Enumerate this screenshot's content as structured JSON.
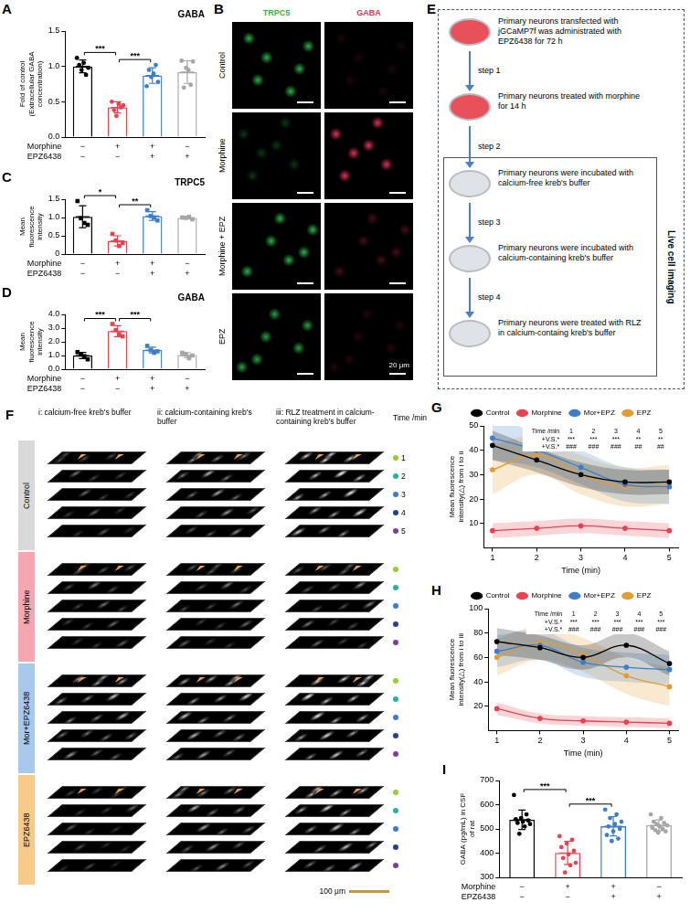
{
  "chart_data": [
    {
      "panel": "A",
      "type": "bar",
      "title": "GABA",
      "y_label": "Fold of control (Extracellular GABA concentration)",
      "categories": [
        null,
        null,
        null,
        null
      ],
      "treatments": [
        {
          "name": "Morphine",
          "signs": [
            "−",
            "+",
            "+",
            "−"
          ]
        },
        {
          "name": "EPZ6438",
          "signs": [
            "−",
            "−",
            "+",
            "+"
          ]
        }
      ],
      "values": [
        1.0,
        0.42,
        0.87,
        0.92
      ],
      "errors": [
        0.09,
        0.08,
        0.11,
        0.16
      ],
      "points": [
        [
          1.12,
          1.02,
          0.95,
          1.05,
          0.88,
          0.98
        ],
        [
          0.5,
          0.38,
          0.3,
          0.47,
          0.42,
          0.45
        ],
        [
          0.72,
          0.95,
          0.85,
          0.9,
          1.02,
          0.78
        ],
        [
          1.08,
          0.7,
          0.98,
          0.95,
          0.74,
          1.07
        ]
      ],
      "colors": [
        "#000000",
        "#e8424f",
        "#3d7ec9",
        "#a6a6a6"
      ],
      "marker": "circle",
      "ylim": [
        0,
        1.5
      ],
      "yticks": [
        {
          "value": 0,
          "label": "0.0"
        },
        0.5,
        {
          "value": 1,
          "label": "1.0"
        },
        1.5
      ],
      "significance": [
        {
          "from": 0,
          "to": 1,
          "label": "***"
        },
        {
          "from": 1,
          "to": 2,
          "label": "***"
        }
      ]
    },
    {
      "panel": "C",
      "type": "bar",
      "title": "TRPC5",
      "y_label": "Mean fluorescence intensity",
      "categories": [
        null,
        null,
        null,
        null
      ],
      "treatments": [
        {
          "name": "Morphine",
          "signs": [
            "−",
            "+",
            "+",
            "−"
          ]
        },
        {
          "name": "EPZ6438",
          "signs": [
            "−",
            "−",
            "+",
            "+"
          ]
        }
      ],
      "values": [
        1.02,
        0.36,
        1.04,
        0.99
      ],
      "errors": [
        0.3,
        0.14,
        0.12,
        0.03
      ],
      "points": [
        [
          1.45,
          0.8,
          0.85,
          0.98
        ],
        [
          0.55,
          0.3,
          0.22,
          0.37
        ],
        [
          1.2,
          0.92,
          1.0,
          1.04
        ],
        [
          1.0,
          0.95,
          1.02,
          0.99
        ]
      ],
      "colors": [
        "#000000",
        "#e8424f",
        "#3d7ec9",
        "#a6a6a6"
      ],
      "marker": "square",
      "ylim": [
        0,
        1.5
      ],
      "yticks": [
        0,
        0.5,
        {
          "value": 1,
          "label": "1.0"
        },
        1.5
      ],
      "significance": [
        {
          "from": 0,
          "to": 1,
          "label": "*"
        },
        {
          "from": 1,
          "to": 2,
          "label": "**"
        }
      ]
    },
    {
      "panel": "D",
      "type": "bar",
      "title": "GABA",
      "y_label": "Mean fluorescence intensity",
      "categories": [
        null,
        null,
        null,
        null
      ],
      "treatments": [
        {
          "name": "Morphine",
          "signs": [
            "−",
            "+",
            "+",
            "−"
          ]
        },
        {
          "name": "EPZ6438",
          "signs": [
            "−",
            "−",
            "+",
            "+"
          ]
        }
      ],
      "values": [
        1.0,
        2.78,
        1.4,
        1.03
      ],
      "errors": [
        0.22,
        0.4,
        0.21,
        0.17
      ],
      "points": [
        [
          1.25,
          0.72,
          0.95,
          1.08
        ],
        [
          3.3,
          2.4,
          2.55,
          2.85
        ],
        [
          1.7,
          1.3,
          1.2,
          1.4
        ],
        [
          1.2,
          1.0,
          0.8,
          1.1
        ]
      ],
      "colors": [
        "#000000",
        "#e8424f",
        "#3d7ec9",
        "#a6a6a6"
      ],
      "marker": "square",
      "ylim": [
        0,
        4
      ],
      "yticks": [
        {
          "value": 0,
          "label": "0.0"
        },
        {
          "value": 1,
          "label": "1.0"
        },
        {
          "value": 2,
          "label": "2.0"
        },
        {
          "value": 3,
          "label": "3.0"
        },
        {
          "value": 4,
          "label": "4.0"
        }
      ],
      "significance": [
        {
          "from": 0,
          "to": 1,
          "label": "***"
        },
        {
          "from": 1,
          "to": 2,
          "label": "***"
        }
      ]
    },
    {
      "panel": "G",
      "type": "line",
      "x_label": "Time (min)",
      "y_label": "Mean fluorescence intensity(△) from i to ii",
      "x": [
        1,
        2,
        3,
        4,
        5
      ],
      "xlim": [
        0.8,
        5.2
      ],
      "xticks": [
        1,
        2,
        3,
        4,
        5
      ],
      "ylim": [
        0,
        50
      ],
      "yticks": [
        10,
        20,
        30,
        40,
        50
      ],
      "legend": "top",
      "marker": "circle",
      "series": [
        {
          "name": "Control",
          "color": "#000000",
          "values": [
            42,
            36,
            30,
            27,
            27
          ],
          "lower": [
            36,
            31,
            25,
            22,
            22
          ],
          "upper": [
            48,
            41,
            35,
            32,
            32
          ]
        },
        {
          "name": "Morphine",
          "color": "#e8424f",
          "values": [
            7,
            8,
            9,
            8,
            7
          ],
          "lower": [
            4,
            5,
            6,
            5,
            4
          ],
          "upper": [
            10,
            11,
            12,
            11,
            10
          ]
        },
        {
          "name": "Mor+EPZ",
          "color": "#3d7ec9",
          "values": [
            45,
            40,
            33,
            26,
            25
          ],
          "lower": [
            36,
            33,
            26,
            19,
            18
          ],
          "upper": [
            54,
            47,
            40,
            33,
            32
          ]
        },
        {
          "name": "EPZ",
          "color": "#e69b2e",
          "values": [
            32,
            38,
            30,
            25,
            26
          ],
          "lower": [
            22,
            30,
            22,
            17,
            18
          ],
          "upper": [
            42,
            46,
            38,
            33,
            34
          ]
        }
      ],
      "stats_table": {
        "header": "Time /min",
        "columns": [
          1,
          2,
          3,
          4,
          5
        ],
        "rows": [
          {
            "label": "+V.S.*",
            "marks": [
              "***",
              "***",
              "***",
              "**",
              "**"
            ]
          },
          {
            "label": "+V.S.*",
            "marks": [
              "###",
              "###",
              "###",
              "##",
              "##"
            ]
          }
        ]
      }
    },
    {
      "panel": "H",
      "type": "line",
      "x_label": "Time (min)",
      "y_label": "Mean fluorescence intensity(△) from i to iii",
      "x": [
        1,
        2,
        3,
        4,
        5
      ],
      "xlim": [
        0.8,
        5.2
      ],
      "xticks": [
        1,
        2,
        3,
        4,
        5
      ],
      "ylim": [
        0,
        100
      ],
      "yticks": [
        20,
        40,
        60,
        80,
        100
      ],
      "legend": "top",
      "marker": "circle",
      "series": [
        {
          "name": "Control",
          "color": "#000000",
          "values": [
            73,
            68,
            60,
            70,
            55
          ],
          "lower": [
            62,
            58,
            50,
            60,
            45
          ],
          "upper": [
            84,
            78,
            70,
            80,
            65
          ]
        },
        {
          "name": "Morphine",
          "color": "#e8424f",
          "values": [
            18,
            10,
            8,
            7,
            6
          ],
          "lower": [
            13,
            6,
            4,
            3,
            2
          ],
          "upper": [
            23,
            14,
            12,
            11,
            10
          ]
        },
        {
          "name": "Mor+EPZ",
          "color": "#3d7ec9",
          "values": [
            65,
            70,
            56,
            52,
            50
          ],
          "lower": [
            52,
            58,
            44,
            40,
            38
          ],
          "upper": [
            78,
            82,
            68,
            64,
            62
          ]
        },
        {
          "name": "EPZ",
          "color": "#e69b2e",
          "values": [
            60,
            72,
            62,
            45,
            36
          ],
          "lower": [
            45,
            58,
            48,
            30,
            20
          ],
          "upper": [
            75,
            86,
            76,
            60,
            52
          ]
        }
      ],
      "stats_table": {
        "header": "Time /min",
        "columns": [
          1,
          2,
          3,
          4,
          5
        ],
        "rows": [
          {
            "label": "+V.S.*",
            "marks": [
              "***",
              "***",
              "***",
              "***",
              "***"
            ]
          },
          {
            "label": "+V.S.*",
            "marks": [
              "###",
              "###",
              "###",
              "###",
              "###"
            ]
          }
        ]
      }
    },
    {
      "panel": "I",
      "type": "bar",
      "y_label": "GABA (pg/mL) in CSF of rat",
      "categories": [
        null,
        null,
        null,
        null
      ],
      "treatments": [
        {
          "name": "Morphine",
          "signs": [
            "−",
            "+",
            "+",
            "−"
          ]
        },
        {
          "name": "EPZ6438",
          "signs": [
            "−",
            "−",
            "+",
            "+"
          ]
        }
      ],
      "values": [
        538,
        401,
        511,
        515
      ],
      "errors": [
        40,
        48,
        40,
        22
      ],
      "points": [
        [
          640,
          560,
          545,
          540,
          535,
          530,
          525,
          520,
          510,
          480
        ],
        [
          470,
          455,
          440,
          425,
          410,
          395,
          380,
          360,
          350,
          320
        ],
        [
          580,
          560,
          545,
          530,
          520,
          510,
          500,
          490,
          475,
          460,
          450
        ],
        [
          560,
          545,
          530,
          525,
          520,
          515,
          510,
          505,
          500,
          495,
          490,
          485
        ]
      ],
      "colors": [
        "#000000",
        "#e8424f",
        "#3d7ec9",
        "#a6a6a6"
      ],
      "marker": "circle",
      "ylim": [
        300,
        700
      ],
      "yticks": [
        300,
        400,
        500,
        600,
        700
      ],
      "significance": [
        {
          "from": 0,
          "to": 1,
          "label": "***"
        },
        {
          "from": 1,
          "to": 2,
          "label": "***"
        }
      ]
    }
  ],
  "panel_B": {
    "panel": "B",
    "columns": [
      {
        "label": "TRPC5",
        "color": "#2fb24a"
      },
      {
        "label": "GABA",
        "color": "#e0325a"
      }
    ],
    "rows": [
      "Control",
      "Morphine",
      "Morphine + EPZ",
      "EPZ"
    ],
    "scale_bar": "20 μm"
  },
  "panel_E": {
    "panel": "E",
    "before_imaging": [
      {
        "text": "Primary neurons transfected with jGCaMP7f was administrated with EPZ6438 for 72 h",
        "color": "#e8505a"
      },
      {
        "text": "Primary neurons treated with morphine for 14 h",
        "color": "#e8505a"
      }
    ],
    "imaging": [
      {
        "text": "Primary neurons were incubated with calcium-free kreb's buffer",
        "color": "#dfe3e8"
      },
      {
        "text": "Primary neurons were incubated with calcium-containing kreb's buffer",
        "color": "#dfe3e8"
      },
      {
        "text": "Primary neurons were treated with RLZ in calcium-containg kreb's buffer",
        "color": "#dfe3e8"
      }
    ],
    "arrows": [
      "step 1",
      "step 2",
      "step 3",
      "step 4"
    ],
    "imaging_label": "Live cell imaging"
  },
  "panel_F": {
    "panel": "F",
    "columns": [
      "i: calcium-free kreb's buffer",
      "ii: calcium-containing kreb's buffer",
      "iii: RLZ treatment in calcium-containing kreb's buffer"
    ],
    "rows": [
      {
        "label": "Control",
        "color": "#d9d9d9"
      },
      {
        "label": "Morphine",
        "color": "#f4a7b0"
      },
      {
        "label": "Mor+EPZ6438",
        "color": "#a8c8ec"
      },
      {
        "label": "EPZ6438",
        "color": "#f7c98a"
      }
    ],
    "time_label": "Time /min",
    "times": [
      1,
      2,
      3,
      4,
      5
    ],
    "scale_bar": "100 μm"
  }
}
